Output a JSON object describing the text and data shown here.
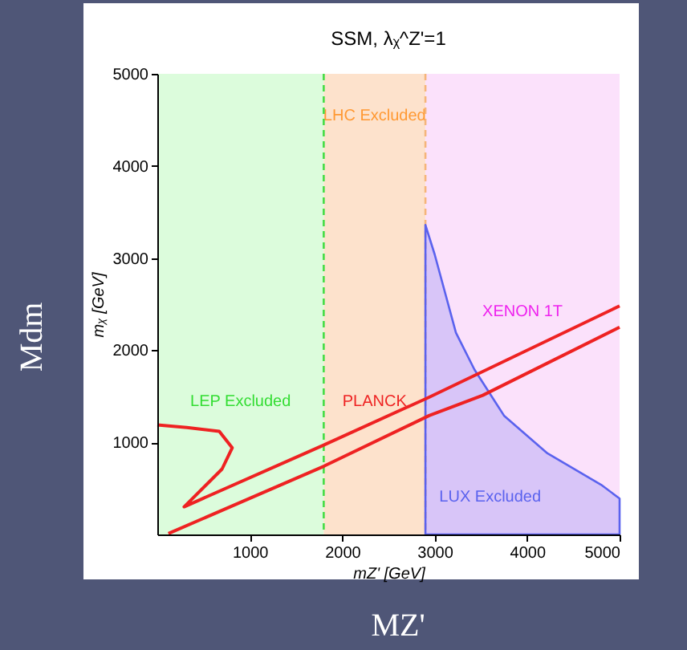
{
  "chart_data": {
    "type": "line",
    "title": "SSM, λᵪ^Z'=1",
    "xlabel": "mZ' [GeV]",
    "ylabel": "mᵪ [GeV]",
    "xlim": [
      0,
      5000
    ],
    "ylim": [
      0,
      5000
    ],
    "xticks": [
      1000,
      2000,
      3000,
      4000,
      5000
    ],
    "yticks": [
      1000,
      2000,
      3000,
      4000,
      5000
    ],
    "grid": false,
    "bands": [
      {
        "axis": "x",
        "from": 0,
        "to": 1800,
        "label": "LEP Excluded",
        "color": "#dcfcdc"
      },
      {
        "axis": "x",
        "from": 1800,
        "to": 2900,
        "label": "LHC Excluded",
        "color": "#fde2cc"
      },
      {
        "axis": "x",
        "from": 2900,
        "to": 5000,
        "label": "XENON 1T",
        "color": "#fbe1fb"
      }
    ],
    "ref_lines": [
      {
        "axis": "x",
        "value": 1800,
        "color": "#44dd44",
        "line_style": "dashed"
      },
      {
        "axis": "x",
        "value": 2900,
        "color": "#f5b57a",
        "line_style": "dashed"
      }
    ],
    "series": [
      {
        "name": "LUX Excluded",
        "type": "area",
        "color": "#5a62ee",
        "x": [
          2900,
          3000,
          3230,
          3430,
          3750,
          4220,
          4800,
          5000
        ],
        "values": [
          3360,
          3040,
          2190,
          1790,
          1290,
          880,
          540,
          390
        ]
      },
      {
        "name": "PLANCK",
        "color": "#ee2222",
        "x": [
          0,
          320,
          670,
          810,
          700,
          290,
          1800,
          2940,
          5000
        ],
        "values": [
          1190,
          1160,
          1120,
          940,
          710,
          300,
          970,
          1490,
          2480
        ]
      },
      {
        "color": "#ee2222",
        "x": [
          120,
          1800,
          2940,
          3520,
          5000
        ],
        "values": [
          10,
          740,
          1290,
          1510,
          2250
        ]
      }
    ],
    "annotations": [
      "Mdm",
      "MZ'"
    ]
  }
}
